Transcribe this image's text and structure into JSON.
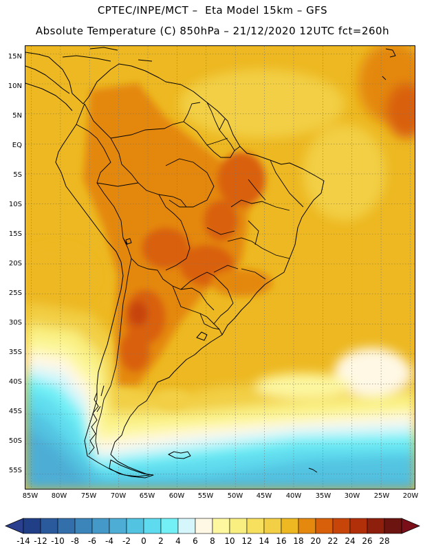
{
  "header": {
    "title_line1": "CPTEC/INPE/MCT –  Eta Model 15km – GFS",
    "title_line2": "Absolute Temperature (C) 850hPa – 21/12/2020 12UTC fct=260h"
  },
  "map": {
    "region": "South America",
    "variable": "Absolute Temperature (C) 850hPa",
    "lat_labels": [
      "15N",
      "10N",
      "5N",
      "EQ",
      "5S",
      "10S",
      "15S",
      "20S",
      "25S",
      "30S",
      "35S",
      "40S",
      "45S",
      "50S",
      "55S"
    ],
    "lat_values": [
      15,
      10,
      5,
      0,
      -5,
      -10,
      -15,
      -20,
      -25,
      -30,
      -35,
      -40,
      -45,
      -50,
      -55
    ],
    "lon_labels": [
      "85W",
      "80W",
      "75W",
      "70W",
      "65W",
      "60W",
      "55W",
      "50W",
      "45W",
      "40W",
      "35W",
      "30W",
      "25W",
      "20W"
    ],
    "lon_values": [
      -85,
      -80,
      -75,
      -70,
      -65,
      -60,
      -55,
      -50,
      -45,
      -40,
      -35,
      -30,
      -25,
      -20
    ],
    "lon_range": [
      -86,
      -19
    ],
    "lat_range": [
      -57.7,
      16.3
    ]
  },
  "colorbar": {
    "labels": [
      "-14",
      "-12",
      "-10",
      "-8",
      "-6",
      "-4",
      "-2",
      "0",
      "2",
      "4",
      "6",
      "8",
      "10",
      "12",
      "14",
      "16",
      "18",
      "20",
      "22",
      "24",
      "26",
      "28"
    ],
    "colors": [
      "#213f86",
      "#2a5a9b",
      "#3370ab",
      "#3b85bb",
      "#4599c8",
      "#4eadd5",
      "#52c3e1",
      "#5edbee",
      "#72f0f6",
      "#d5f6fb",
      "#fff8e4",
      "#fdf7a0",
      "#f9ef80",
      "#f6e05e",
      "#f2cf45",
      "#edb821",
      "#e4880e",
      "#d9600b",
      "#c74509",
      "#b1300a",
      "#8e1f0c",
      "#6c1410"
    ],
    "under_color": "#2a3f8e",
    "over_color": "#7a0f1a"
  }
}
